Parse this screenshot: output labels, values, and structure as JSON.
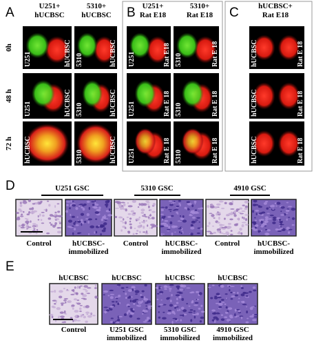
{
  "panel_A": {
    "label": "A",
    "columns": [
      [
        "U251+",
        "hUCBSC"
      ],
      [
        "5310+",
        "hUCBSC"
      ]
    ],
    "rows": [
      "0h",
      "48 h",
      "72 h"
    ],
    "images": [
      [
        {
          "left": "U251",
          "right": "hUCBSC"
        },
        {
          "left": "5310",
          "right": "hUCBSC"
        }
      ],
      [
        {
          "left": "U251",
          "right": "hUCBSC"
        },
        {
          "left": "5310",
          "right": "hUCBSC"
        }
      ],
      [
        {
          "left": "hUCBSC"
        },
        {
          "left": "5310",
          "right": "hUCBSC"
        }
      ]
    ]
  },
  "panel_B": {
    "label": "B",
    "columns": [
      [
        "U251+",
        "Rat E18"
      ],
      [
        "5310+",
        "Rat E18"
      ]
    ],
    "images": [
      [
        {
          "left": "U251",
          "right": "Rat E18"
        },
        {
          "left": "5310",
          "right": "Rat E 18"
        }
      ],
      [
        {
          "left": "U251",
          "right": "Rat E 18"
        },
        {
          "left": "5310",
          "right": "Rat E 18"
        }
      ],
      [
        {
          "left": "U251",
          "right": "Rat E 18"
        },
        {
          "left": "5310",
          "right": "Rat E 18"
        }
      ]
    ]
  },
  "panel_C": {
    "label": "C",
    "columns": [
      [
        "hUCBSC+",
        "Rat E18"
      ]
    ],
    "images": [
      [
        {
          "left": "hUCBSC",
          "right": "Rat E 18"
        }
      ],
      [
        {
          "left": "hUCBSC",
          "right": "Rat E 18"
        }
      ],
      [
        {
          "left": "hUCBSC",
          "right": "Rat E 18"
        }
      ]
    ]
  },
  "panel_D": {
    "label": "D",
    "groups": [
      "U251 GSC",
      "5310 GSC",
      "4910 GSC"
    ],
    "captions": [
      [
        "Control"
      ],
      [
        "hUCBSC-",
        "immobilized"
      ],
      [
        "Control"
      ],
      [
        "hUCBSC-",
        "immobilized"
      ],
      [
        "Control"
      ],
      [
        "hUCBSC-",
        "immobilized"
      ]
    ]
  },
  "panel_E": {
    "label": "E",
    "headers": [
      "hUCBSC",
      "hUCBSC",
      "hUCBSC",
      "hUCBSC"
    ],
    "captions": [
      [
        "Control"
      ],
      [
        "U251 GSC",
        "immobilized"
      ],
      [
        "5310 GSC",
        "immobilized"
      ],
      [
        "4910 GSC",
        "immobilized"
      ]
    ]
  }
}
